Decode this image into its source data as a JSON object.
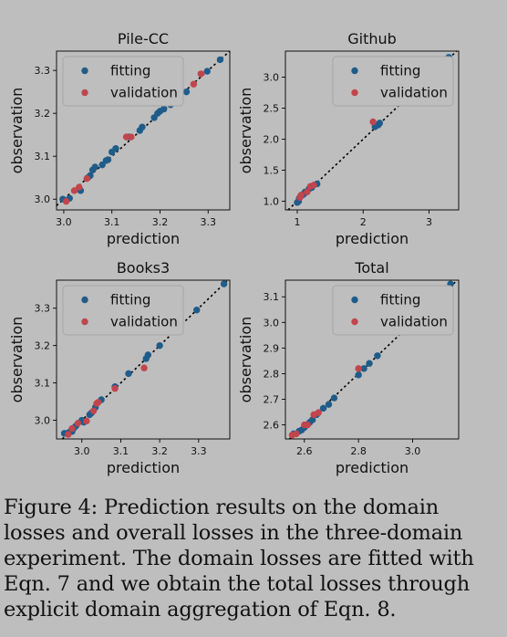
{
  "colors": {
    "fitting": "#1f5c8a",
    "validation": "#c0454c",
    "background": "#bebebe",
    "fit_line": "#000000"
  },
  "caption": "Figure 4:   Prediction results on the domain losses and overall losses in the three-domain experiment. The domain losses are fitted with Eqn. 7 and we obtain the total losses through explicit domain aggregation of Eqn. 8.",
  "chart_data": [
    {
      "type": "scatter",
      "title": "Pile-CC",
      "xlabel": "prediction",
      "ylabel": "observation",
      "xlim": [
        2.985,
        3.345
      ],
      "ylim": [
        2.975,
        3.345
      ],
      "xticks": [
        3.0,
        3.1,
        3.2,
        3.3
      ],
      "xtick_labels": [
        "3.0",
        "3.1",
        "3.2",
        "3.3"
      ],
      "yticks": [
        3.0,
        3.1,
        3.2,
        3.3
      ],
      "ytick_labels": [
        "3.0",
        "3.1",
        "3.2",
        "3.3"
      ],
      "legend_position": "top-left",
      "grid": false,
      "identity_line": true,
      "series": [
        {
          "name": "fitting",
          "points": [
            [
              2.998,
              3.0
            ],
            [
              3.012,
              3.002
            ],
            [
              3.035,
              3.02
            ],
            [
              3.05,
              3.05
            ],
            [
              3.055,
              3.055
            ],
            [
              3.06,
              3.068
            ],
            [
              3.065,
              3.075
            ],
            [
              3.08,
              3.08
            ],
            [
              3.088,
              3.09
            ],
            [
              3.092,
              3.092
            ],
            [
              3.1,
              3.11
            ],
            [
              3.108,
              3.118
            ],
            [
              3.135,
              3.145
            ],
            [
              3.158,
              3.16
            ],
            [
              3.163,
              3.168
            ],
            [
              3.188,
              3.19
            ],
            [
              3.195,
              3.2
            ],
            [
              3.2,
              3.205
            ],
            [
              3.208,
              3.21
            ],
            [
              3.222,
              3.22
            ],
            [
              3.255,
              3.25
            ],
            [
              3.298,
              3.298
            ],
            [
              3.325,
              3.325
            ]
          ]
        },
        {
          "name": "validation",
          "points": [
            [
              3.005,
              2.995
            ],
            [
              3.022,
              3.02
            ],
            [
              3.032,
              3.028
            ],
            [
              3.048,
              3.048
            ],
            [
              3.13,
              3.145
            ],
            [
              3.14,
              3.145
            ],
            [
              3.27,
              3.268
            ],
            [
              3.285,
              3.292
            ]
          ]
        }
      ]
    },
    {
      "type": "scatter",
      "title": "Github",
      "xlabel": "prediction",
      "ylabel": "observation",
      "xlim": [
        0.82,
        3.45
      ],
      "ylim": [
        0.86,
        3.42
      ],
      "xticks": [
        1,
        2,
        3
      ],
      "xtick_labels": [
        "1",
        "2",
        "3"
      ],
      "yticks": [
        1.0,
        1.5,
        2.0,
        2.5,
        3.0
      ],
      "ytick_labels": [
        "1.0",
        "1.5",
        "2.0",
        "2.5",
        "3.0"
      ],
      "legend_position": "top-right",
      "grid": false,
      "identity_line": true,
      "series": [
        {
          "name": "fitting",
          "points": [
            [
              1.0,
              0.98
            ],
            [
              1.02,
              1.0
            ],
            [
              1.03,
              1.05
            ],
            [
              1.05,
              1.08
            ],
            [
              1.08,
              1.1
            ],
            [
              1.1,
              1.12
            ],
            [
              1.12,
              1.15
            ],
            [
              1.18,
              1.2
            ],
            [
              1.22,
              1.22
            ],
            [
              1.3,
              1.28
            ],
            [
              2.18,
              2.2
            ],
            [
              2.23,
              2.23
            ],
            [
              2.25,
              2.26
            ],
            [
              3.3,
              3.32
            ]
          ]
        },
        {
          "name": "validation",
          "points": [
            [
              1.04,
              1.06
            ],
            [
              1.06,
              1.1
            ],
            [
              1.15,
              1.15
            ],
            [
              1.2,
              1.24
            ],
            [
              1.25,
              1.26
            ],
            [
              2.15,
              2.28
            ]
          ]
        }
      ]
    },
    {
      "type": "scatter",
      "title": "Books3",
      "xlabel": "prediction",
      "ylabel": "observation",
      "xlim": [
        2.935,
        3.38
      ],
      "ylim": [
        2.95,
        3.375
      ],
      "xticks": [
        3.0,
        3.1,
        3.2,
        3.3
      ],
      "xtick_labels": [
        "3.0",
        "3.1",
        "3.2",
        "3.3"
      ],
      "yticks": [
        3.0,
        3.1,
        3.2,
        3.3
      ],
      "ytick_labels": [
        "3.0",
        "3.1",
        "3.2",
        "3.3"
      ],
      "legend_position": "top-left",
      "grid": false,
      "identity_line": true,
      "series": [
        {
          "name": "fitting",
          "points": [
            [
              2.955,
              2.965
            ],
            [
              2.962,
              2.965
            ],
            [
              2.97,
              2.97
            ],
            [
              2.975,
              2.97
            ],
            [
              2.98,
              2.98
            ],
            [
              2.985,
              2.985
            ],
            [
              3.0,
              3.0
            ],
            [
              3.005,
              2.995
            ],
            [
              3.02,
              3.015
            ],
            [
              3.025,
              3.02
            ],
            [
              3.035,
              3.035
            ],
            [
              3.05,
              3.055
            ],
            [
              3.085,
              3.09
            ],
            [
              3.12,
              3.125
            ],
            [
              3.165,
              3.165
            ],
            [
              3.17,
              3.175
            ],
            [
              3.2,
              3.2
            ],
            [
              3.295,
              3.295
            ],
            [
              3.365,
              3.365
            ]
          ]
        },
        {
          "name": "validation",
          "points": [
            [
              2.965,
              2.962
            ],
            [
              2.975,
              2.978
            ],
            [
              2.99,
              2.992
            ],
            [
              3.012,
              2.998
            ],
            [
              3.03,
              3.025
            ],
            [
              3.038,
              3.045
            ],
            [
              3.042,
              3.048
            ],
            [
              3.085,
              3.085
            ],
            [
              3.16,
              3.14
            ]
          ]
        }
      ]
    },
    {
      "type": "scatter",
      "title": "Total",
      "xlabel": "prediction",
      "ylabel": "observation",
      "xlim": [
        2.53,
        3.17
      ],
      "ylim": [
        2.545,
        3.165
      ],
      "xticks": [
        2.6,
        2.8,
        3.0
      ],
      "xtick_labels": [
        "2.6",
        "2.8",
        "3.0"
      ],
      "yticks": [
        2.6,
        2.7,
        2.8,
        2.9,
        3.0,
        3.1
      ],
      "ytick_labels": [
        "2.6",
        "2.7",
        "2.8",
        "2.9",
        "3.0",
        "3.1"
      ],
      "legend_position": "top-right",
      "grid": false,
      "identity_line": true,
      "series": [
        {
          "name": "fitting",
          "points": [
            [
              2.56,
              2.565
            ],
            [
              2.58,
              2.575
            ],
            [
              2.59,
              2.58
            ],
            [
              2.6,
              2.59
            ],
            [
              2.605,
              2.6
            ],
            [
              2.62,
              2.61
            ],
            [
              2.63,
              2.62
            ],
            [
              2.645,
              2.64
            ],
            [
              2.67,
              2.665
            ],
            [
              2.69,
              2.68
            ],
            [
              2.71,
              2.705
            ],
            [
              2.8,
              2.795
            ],
            [
              2.82,
              2.82
            ],
            [
              2.84,
              2.84
            ],
            [
              2.87,
              2.87
            ],
            [
              3.14,
              3.15
            ]
          ]
        },
        {
          "name": "validation",
          "points": [
            [
              2.555,
              2.56
            ],
            [
              2.57,
              2.565
            ],
            [
              2.6,
              2.6
            ],
            [
              2.612,
              2.6
            ],
            [
              2.635,
              2.64
            ],
            [
              2.652,
              2.648
            ],
            [
              2.8,
              2.82
            ]
          ]
        }
      ]
    }
  ]
}
